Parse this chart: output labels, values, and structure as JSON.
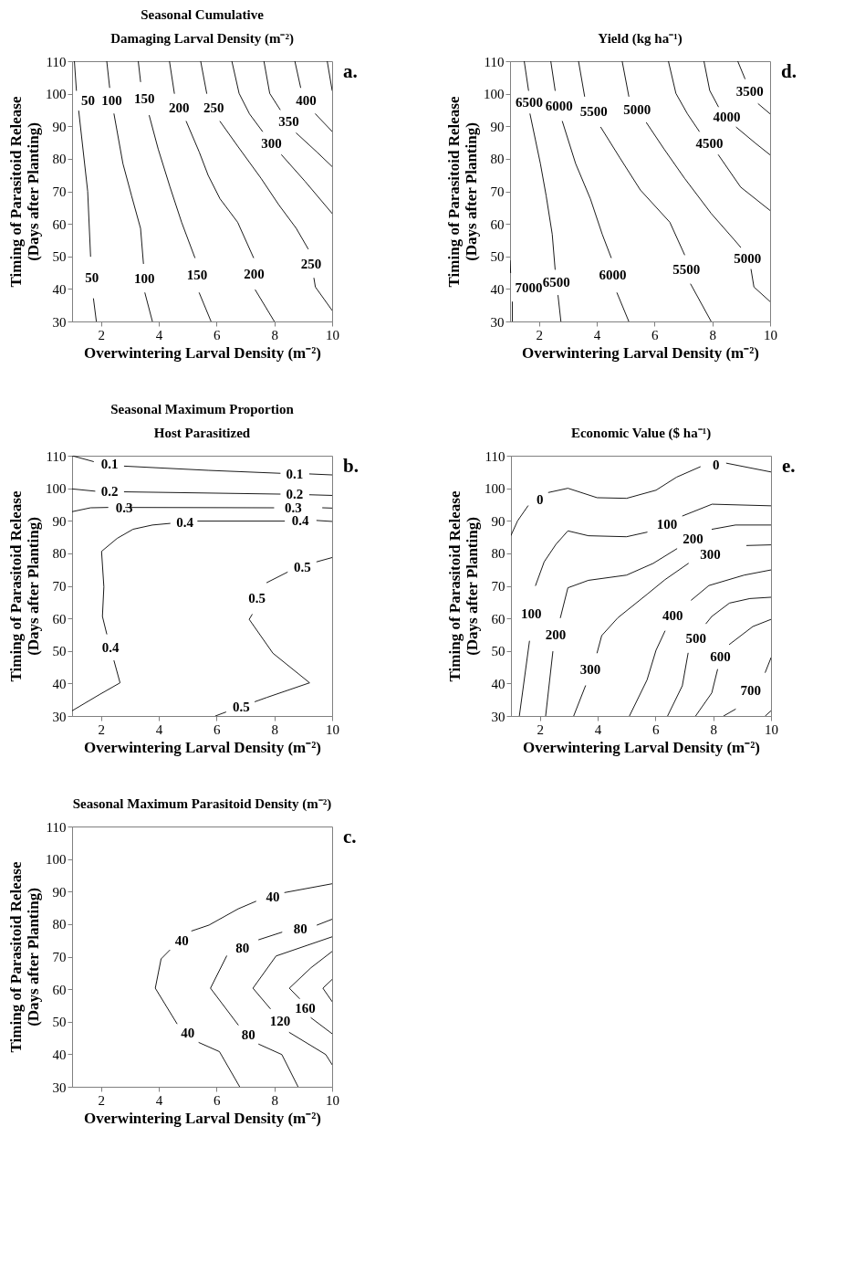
{
  "chart_data": [
    {
      "type": "line",
      "title": "Seasonal Cumulative\nDamaging Larval Density (m⁻²)",
      "xlabel": "Overwintering Larval Density (m⁻²)",
      "ylabel": "Timing of Parasitoid Release\n(Days after Planting)",
      "xlim": [
        1,
        10
      ],
      "xticks": [
        2,
        4,
        6,
        8,
        10
      ],
      "ylim": [
        30,
        110
      ],
      "yticks": [
        30,
        40,
        50,
        60,
        70,
        80,
        90,
        100,
        110
      ],
      "line_style": "solid",
      "annotations": [
        "a."
      ],
      "series": [
        {
          "name": "50",
          "color": "#000000",
          "x": [
            1.08,
            1.15,
            1.19,
            1.23,
            1.54,
            1.64,
            1.69,
            1.74,
            1.84
          ],
          "values": [
            110,
            101,
            null,
            94.7,
            70,
            50,
            null,
            37,
            30
          ]
        },
        {
          "name": "100",
          "color": "#000000",
          "x": [
            2.2,
            2.3,
            2.37,
            2.45,
            2.76,
            3.06,
            3.37,
            3.47,
            3.5,
            3.52,
            3.78
          ],
          "values": [
            110,
            101.9,
            null,
            93.8,
            78.5,
            68.6,
            58.6,
            47.8,
            null,
            38.8,
            30
          ]
        },
        {
          "name": "150",
          "color": "#000000",
          "x": [
            3.29,
            3.37,
            3.5,
            3.67,
            3.98,
            4.39,
            4.79,
            5.25,
            5.33,
            5.4,
            5.81
          ],
          "values": [
            110,
            103.7,
            null,
            93.3,
            83,
            71.3,
            60.5,
            49.6,
            null,
            38.8,
            30
          ]
        },
        {
          "name": "200",
          "color": "#000000",
          "x": [
            4.37,
            4.54,
            4.7,
            4.95,
            5.4,
            5.71,
            6.12,
            6.73,
            7.28,
            7.3,
            7.34,
            8.0
          ],
          "values": [
            110,
            100.1,
            null,
            91.5,
            82.1,
            74.9,
            67.7,
            60.5,
            49.6,
            null,
            39.7,
            30
          ]
        },
        {
          "name": "250",
          "color": "#000000",
          "x": [
            5.45,
            5.66,
            5.9,
            6.12,
            6.73,
            7.54,
            8.15,
            8.76,
            9.17,
            9.27,
            9.37,
            9.42,
            10
          ],
          "values": [
            110,
            100.1,
            null,
            91.5,
            83.9,
            74,
            65.9,
            58.6,
            52.3,
            null,
            43.3,
            40.6,
            33.4
          ]
        },
        {
          "name": "300",
          "color": "#000000",
          "x": [
            6.53,
            6.78,
            7.14,
            7.59,
            7.9,
            8.25,
            9.06,
            10
          ],
          "values": [
            110,
            100.1,
            93.8,
            88.4,
            null,
            81.2,
            73.1,
            63.2
          ]
        },
        {
          "name": "350",
          "color": "#000000",
          "x": [
            7.64,
            7.84,
            8.2,
            8.5,
            8.76,
            9.47,
            10
          ],
          "values": [
            110,
            100.1,
            95.1,
            null,
            87.9,
            82.1,
            77.6
          ]
        },
        {
          "name": "400",
          "color": "#000000",
          "x": [
            8.71,
            8.91,
            9.1,
            9.42,
            10
          ],
          "values": [
            110,
            101.9,
            null,
            93.8,
            88.4
          ]
        },
        {
          "color": "#000000",
          "x": [
            9.83,
            10
          ],
          "values": [
            110,
            101
          ]
        }
      ]
    },
    {
      "type": "line",
      "title": "Yield (kg ha⁻¹)",
      "xlabel": "Overwintering Larval Density (m⁻²)",
      "ylabel": "Timing of Parasitoid Release\n(Days after Planting)",
      "xlim": [
        1,
        10
      ],
      "xticks": [
        2,
        4,
        6,
        8,
        10
      ],
      "ylim": [
        30,
        110
      ],
      "yticks": [
        30,
        40,
        50,
        60,
        70,
        80,
        90,
        100,
        110
      ],
      "line_style": "solid",
      "annotations": [
        "d."
      ],
      "series": [
        {
          "name": "7000",
          "color": "#000000",
          "x": [
            1.0,
            1.02,
            1.05,
            1.08,
            1.08
          ],
          "values": [
            48.7,
            45,
            null,
            36,
            30
          ]
        },
        {
          "name": "6500",
          "color": "#000000",
          "x": [
            1.49,
            1.64,
            1.66,
            1.69,
            2.05,
            2.25,
            2.46,
            2.56,
            2.6,
            2.66,
            2.76
          ],
          "values": [
            110,
            101,
            null,
            93.8,
            78.5,
            68.6,
            56.8,
            46,
            null,
            38,
            30
          ]
        },
        {
          "name": "6000",
          "color": "#000000",
          "x": [
            2.41,
            2.56,
            2.7,
            2.81,
            3.27,
            3.78,
            4.19,
            4.5,
            4.55,
            4.7,
            5.11
          ],
          "values": [
            110,
            101,
            null,
            91.5,
            78.5,
            67.7,
            56.8,
            49.6,
            null,
            38.8,
            30
          ]
        },
        {
          "name": "5500",
          "color": "#000000",
          "x": [
            3.37,
            3.58,
            3.9,
            4.14,
            4.8,
            5.51,
            6.53,
            7.04,
            7.1,
            7.25,
            7.96
          ],
          "values": [
            110,
            99.2,
            null,
            89.7,
            80.3,
            70.4,
            60.5,
            50.5,
            null,
            41.5,
            30
          ]
        },
        {
          "name": "5000",
          "color": "#000000",
          "x": [
            4.88,
            5.11,
            5.4,
            5.72,
            6.33,
            7.04,
            7.96,
            8.77,
            8.98,
            9.22,
            9.34,
            9.44,
            10
          ],
          "values": [
            110,
            99.2,
            null,
            91.1,
            83,
            74,
            63.2,
            55,
            52.8,
            null,
            46,
            40.6,
            36.1
          ]
        },
        {
          "name": "4500",
          "color": "#000000",
          "x": [
            6.48,
            6.74,
            7.14,
            7.55,
            7.9,
            8.21,
            8.98,
            10
          ],
          "values": [
            110,
            100.1,
            93.8,
            88.4,
            null,
            81.2,
            71.3,
            64.1
          ]
        },
        {
          "name": "4000",
          "color": "#000000",
          "x": [
            7.71,
            7.91,
            8.21,
            8.5,
            8.83,
            9.49,
            10
          ],
          "values": [
            110,
            101,
            96,
            null,
            89.7,
            84.8,
            81.2
          ]
        },
        {
          "name": "3500",
          "color": "#000000",
          "x": [
            8.88,
            9.13,
            9.3,
            9.59,
            10
          ],
          "values": [
            110,
            104.6,
            null,
            96.9,
            93.8
          ]
        }
      ]
    },
    {
      "type": "line",
      "title": "Seasonal Maximum Proportion\nHost Parasitized",
      "xlabel": "Overwintering Larval Density (m⁻²)",
      "ylabel": "Timing of Parasitoid Release\n(Days after Planting)",
      "xlim": [
        1,
        10
      ],
      "xticks": [
        2,
        4,
        6,
        8,
        10
      ],
      "ylim": [
        30,
        110
      ],
      "yticks": [
        30,
        40,
        50,
        60,
        70,
        80,
        90,
        100,
        110
      ],
      "line_style": "solid",
      "annotations": [
        "b."
      ],
      "series": [
        {
          "name": "0.1",
          "color": "#000000",
          "x": [
            1,
            1.74,
            2.3,
            2.81,
            5.71,
            8.2,
            8.7,
            9.22,
            10
          ],
          "values": [
            110,
            108.2,
            null,
            106.8,
            105.5,
            104.6,
            null,
            104.4,
            104.1
          ]
        },
        {
          "name": "0.2",
          "color": "#000000",
          "x": [
            1,
            1.79,
            2.3,
            2.81,
            8.2,
            8.7,
            9.22,
            10
          ],
          "values": [
            99.8,
            99.1,
            null,
            98.9,
            98.2,
            null,
            98,
            97.8
          ]
        },
        {
          "name": "0.3",
          "color": "#000000",
          "x": [
            1,
            1.64,
            2.24,
            2.8,
            2.85,
            7.98,
            8.65,
            9.67,
            10
          ],
          "values": [
            92.8,
            94,
            94.1,
            null,
            94.1,
            94,
            null,
            94,
            93.9
          ]
        },
        {
          "name": "0.4",
          "color": "#000000",
          "x": [
            10,
            9.47,
            8.9,
            8.35,
            5.35,
            4.9,
            4.39,
            3.78,
            3.11,
            2.56,
            2.02,
            2.1,
            2.05,
            2.2,
            2.33,
            2.45,
            2.66,
            1.95,
            1
          ],
          "values": [
            89.8,
            90.1,
            null,
            89.9,
            89.9,
            null,
            89.2,
            88.7,
            87.4,
            84.6,
            80.6,
            69.7,
            60.6,
            55.2,
            null,
            47,
            40.2,
            36.6,
            31.6
          ]
        },
        {
          "name": "0.5",
          "color": "#000000",
          "x": [
            10,
            9.47,
            8.97,
            8.45,
            7.74,
            7.4,
            7.23,
            7.13,
            7.95,
            9.22,
            7.74,
            7.33,
            6.85,
            6.32,
            5.96
          ],
          "values": [
            78.7,
            77.4,
            null,
            74.2,
            71,
            null,
            61.2,
            59.7,
            49.3,
            40.2,
            35.7,
            34.4,
            null,
            31.2,
            30
          ]
        }
      ]
    },
    {
      "type": "line",
      "title": "Economic Value ($ ha⁻¹)",
      "xlabel": "Overwintering Larval Density (m⁻²)",
      "ylabel": "Timing of Parasitoid Release\n(Days after Planting)",
      "xlim": [
        1,
        10
      ],
      "xticks": [
        2,
        4,
        6,
        8,
        10
      ],
      "ylim": [
        30,
        110
      ],
      "yticks": [
        30,
        40,
        50,
        60,
        70,
        80,
        90,
        100,
        110
      ],
      "line_style": "solid",
      "annotations": [
        "e."
      ],
      "series": [
        {
          "name": "0",
          "color": "#000000",
          "x": [
            1,
            1.23,
            1.59,
            2.0,
            2.3,
            2.97,
            3.98,
            5,
            6.02,
            6.73,
            7.55,
            8.1,
            8.46,
            10
          ],
          "values": [
            85.5,
            90,
            94.6,
            null,
            98.7,
            100,
            97.1,
            96.9,
            99.4,
            103.4,
            106.6,
            null,
            107.7,
            105
          ]
        },
        {
          "name": "100",
          "color": "#000000",
          "x": [
            1.29,
            1.64,
            1.7,
            1.85,
            2.15,
            2.56,
            2.97,
            3.68,
            5,
            5.71,
            6.4,
            6.94,
            7.96,
            10
          ],
          "values": [
            30,
            53,
            null,
            70.1,
            77.4,
            82.8,
            86.9,
            85.4,
            85.1,
            86.5,
            null,
            91.5,
            95.1,
            94.6
          ]
        },
        {
          "name": "200",
          "color": "#000000",
          "x": [
            2.2,
            2.45,
            2.55,
            2.71,
            2.97,
            3.68,
            5,
            5.92,
            6.74,
            7.3,
            7.96,
            8.77,
            10
          ],
          "values": [
            30,
            49.8,
            null,
            60.2,
            69.4,
            71.7,
            73.3,
            76.9,
            81.4,
            null,
            87.4,
            88.7,
            88.7
          ]
        },
        {
          "name": "300",
          "color": "#000000",
          "x": [
            3.17,
            3.58,
            3.75,
            3.98,
            4.14,
            4.7,
            5.71,
            6.33,
            7.14,
            7.9,
            9.16,
            10
          ],
          "values": [
            30,
            39.3,
            null,
            49.4,
            54.7,
            60.2,
            67.4,
            71.9,
            76.9,
            null,
            82.4,
            82.6
          ]
        },
        {
          "name": "400",
          "color": "#000000",
          "x": [
            5.1,
            5.71,
            6.02,
            6.33,
            6.6,
            7.24,
            7.85,
            9.07,
            10
          ],
          "values": [
            30,
            41.1,
            50.2,
            56.1,
            null,
            65.6,
            70.1,
            73.3,
            74.9
          ]
        },
        {
          "name": "500",
          "color": "#000000",
          "x": [
            6.42,
            6.93,
            7.13,
            7.4,
            7.75,
            7.95,
            8.56,
            9.27,
            10
          ],
          "values": [
            30,
            39.3,
            49.3,
            null,
            58.4,
            60.6,
            64.7,
            66.1,
            66.5
          ]
        },
        {
          "name": "600",
          "color": "#000000",
          "x": [
            7.39,
            7.95,
            8.15,
            8.25,
            8.56,
            9.37,
            10
          ],
          "values": [
            30,
            37.1,
            44.3,
            null,
            52,
            57.5,
            59.7
          ]
        },
        {
          "name": "700",
          "color": "#000000",
          "x": [
            8.36,
            8.77,
            9.3,
            9.8,
            10
          ],
          "values": [
            30,
            32.1,
            null,
            43.4,
            47.9
          ]
        },
        {
          "color": "#000000",
          "x": [
            9.8,
            10
          ],
          "values": [
            30,
            31.6
          ]
        }
      ]
    },
    {
      "type": "line",
      "title": "Seasonal Maximum Parasitoid Density (m⁻²)",
      "xlabel": "Overwintering Larval Density (m⁻²)",
      "ylabel": "Timing of Parasitoid Release\n(Days after Planting)",
      "xlim": [
        1,
        10
      ],
      "xticks": [
        2,
        4,
        6,
        8,
        10
      ],
      "ylim": [
        30,
        110
      ],
      "yticks": [
        30,
        40,
        50,
        60,
        70,
        80,
        90,
        100,
        110
      ],
      "line_style": "solid",
      "annotations": [
        "c."
      ],
      "series": [
        {
          "name": "40",
          "color": "#000000",
          "x": [
            10,
            8.36,
            7.95,
            7.36,
            6.75,
            5.74,
            5.14,
            4.8,
            4.38,
            4.08,
            3.88,
            4.63,
            5.0,
            5.39,
            6.1,
            6.8
          ],
          "values": [
            92.4,
            89.7,
            null,
            87,
            84.7,
            79.7,
            77.9,
            null,
            72,
            69.3,
            60.3,
            49.4,
            null,
            43.6,
            40.8,
            30
          ]
        },
        {
          "name": "80",
          "color": "#000000",
          "x": [
            10,
            9.48,
            8.9,
            8.26,
            7.46,
            6.9,
            6.35,
            5.79,
            6.75,
            7.1,
            7.46,
            8.26,
            8.82
          ],
          "values": [
            81.5,
            79.7,
            null,
            77.5,
            75.2,
            null,
            70.2,
            60.3,
            49,
            null,
            43.1,
            39.9,
            30
          ]
        },
        {
          "name": "120",
          "color": "#000000",
          "x": [
            10,
            8.06,
            7.26,
            7.86,
            8.2,
            8.52,
            9.78,
            10
          ],
          "values": [
            76.1,
            70.2,
            60.3,
            54,
            null,
            46.7,
            39.9,
            36.8
          ]
        },
        {
          "name": "160",
          "color": "#000000",
          "x": [
            10,
            9.27,
            8.52,
            8.87,
            9.07,
            9.27,
            10
          ],
          "values": [
            71.6,
            66.6,
            60.3,
            57.1,
            null,
            51.2,
            46.3
          ]
        },
        {
          "color": "#000000",
          "x": [
            10,
            9.68,
            10
          ],
          "values": [
            63,
            60.3,
            56.2
          ]
        }
      ]
    }
  ]
}
